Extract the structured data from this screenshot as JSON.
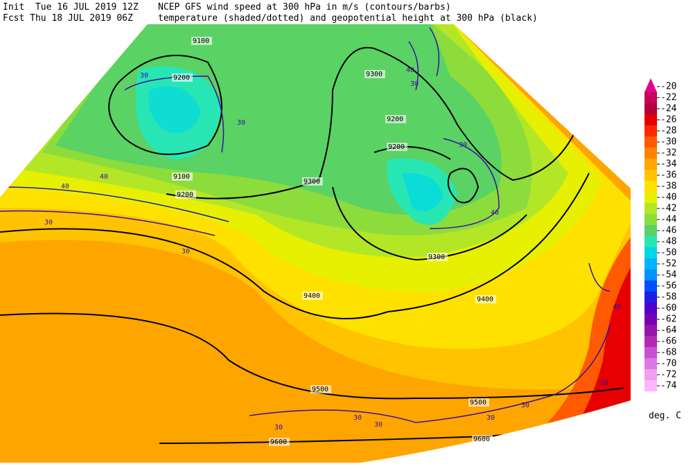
{
  "header": {
    "init": "Init  Tue 16 JUL 2019 12Z",
    "fcst": "Fcst Thu 18 JUL 2019 06Z",
    "title": "NCEP GFS wind speed at 300 hPa in m/s (contours/barbs)",
    "subtitle": "temperature (shaded/dotted) and geopotential height at 300 hPa (black)"
  },
  "colorbar": {
    "levels": [
      -20,
      -22,
      -24,
      -26,
      -28,
      -30,
      -32,
      -34,
      -36,
      -38,
      -40,
      -42,
      -44,
      -46,
      -48,
      -50,
      -52,
      -54,
      -56,
      -58,
      -60,
      -62,
      -64,
      -66,
      -68,
      -70,
      -72,
      -74
    ],
    "colors": [
      "#e6008c",
      "#c8005a",
      "#b4003c",
      "#e60000",
      "#ff2800",
      "#ff5a00",
      "#ff8200",
      "#ffa500",
      "#ffc300",
      "#ffe100",
      "#e6f000",
      "#b4e628",
      "#8cdc3c",
      "#5ad264",
      "#28e6b4",
      "#00d7e6",
      "#00b4ff",
      "#0091ff",
      "#0050ff",
      "#1e1ee6",
      "#5000c8",
      "#7800b4",
      "#9614aa",
      "#b428b4",
      "#c850d2",
      "#dc78e6",
      "#f0a0f0",
      "#ffb4ff"
    ],
    "unit": "deg. C"
  },
  "height_labels": [
    9100,
    9200,
    9300,
    9200,
    9200,
    9300,
    9100,
    9200,
    9300,
    9400,
    9400,
    9500,
    9500,
    9600,
    9600
  ],
  "wind_labels": [
    30,
    30,
    40,
    30,
    30,
    40,
    40,
    40,
    30,
    30,
    40,
    30,
    30,
    30,
    30,
    30,
    30
  ]
}
